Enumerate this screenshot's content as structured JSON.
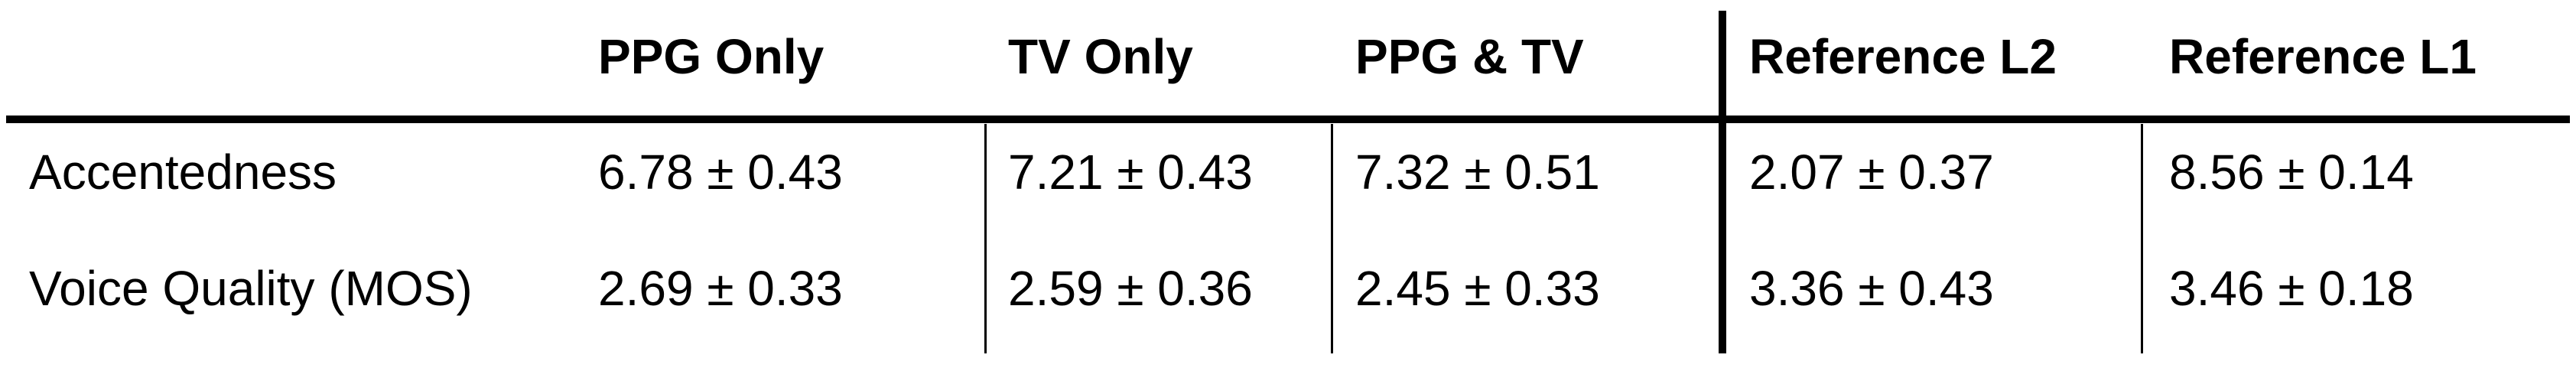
{
  "table": {
    "headers": [
      "",
      "PPG Only",
      "TV Only",
      "PPG & TV",
      "Reference L2",
      "Reference L1"
    ],
    "rows": [
      {
        "label": "Accentedness",
        "cells": [
          "6.78 ± 0.43",
          "7.21 ± 0.43",
          "7.32 ± 0.51",
          "2.07 ± 0.37",
          "8.56 ± 0.14"
        ]
      },
      {
        "label": "Voice Quality (MOS)",
        "cells": [
          "2.69 ± 0.33",
          "2.59 ± 0.36",
          "2.45 ± 0.33",
          "3.36 ± 0.43",
          "3.46 ± 0.18"
        ]
      }
    ]
  }
}
